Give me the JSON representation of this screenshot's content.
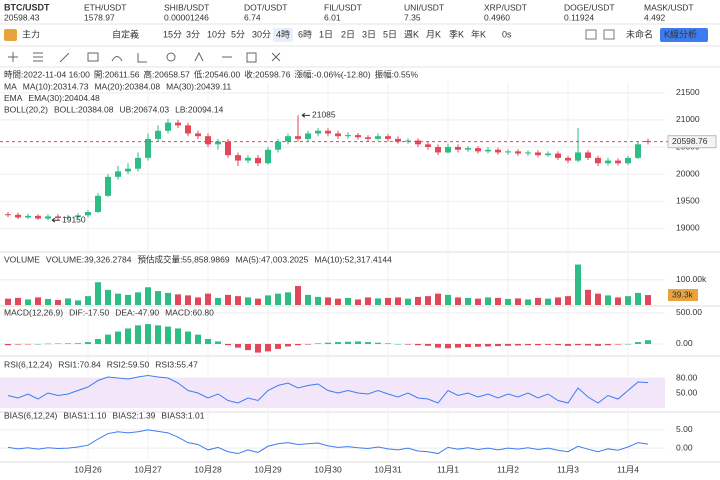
{
  "tickers": [
    {
      "symbol": "BTC/USDT",
      "price": "20598.43",
      "color": "#e2475a"
    },
    {
      "symbol": "ETH/USDT",
      "price": "1578.97",
      "color": "#e2475a"
    },
    {
      "symbol": "SHIB/USDT",
      "price": "0.00001246",
      "color": "#1fae6e"
    },
    {
      "symbol": "DOT/USDT",
      "price": "6.74",
      "color": "#333333"
    },
    {
      "symbol": "FIL/USDT",
      "price": "6.01",
      "color": "#333333"
    },
    {
      "symbol": "UNI/USDT",
      "price": "7.35",
      "color": "#333333"
    },
    {
      "symbol": "XRP/USDT",
      "price": "0.4960",
      "color": "#1fae6e"
    },
    {
      "symbol": "DOGE/USDT",
      "price": "0.11924",
      "color": "#e2475a"
    },
    {
      "symbol": "MASK/USDT",
      "price": "4.492",
      "color": "#e2475a"
    }
  ],
  "toolbar": {
    "mode": "主力",
    "custom": "自定義",
    "intervals": [
      "15分",
      "3分",
      "10分",
      "5分",
      "30分",
      "4時",
      "6時",
      "1日",
      "2日",
      "3日",
      "5日",
      "週K",
      "月K",
      "季K",
      "年K"
    ],
    "timer": "0s",
    "layout_name": "未命名",
    "analysis_button": "K線分析"
  },
  "info": [
    "時間:2022-11-04 16:00",
    "開:20611.56",
    "高:20658.57",
    "低:20546.00",
    "收:20598.76",
    "漲幅:-0.06%(-12.80)",
    "振幅:0.55%"
  ],
  "chart_data": [
    {
      "type": "candlestick",
      "up_color": "#2ebd85",
      "down_color": "#e2475a",
      "legend_rows": [
        [
          {
            "text": "MA",
            "color": "#666666"
          },
          {
            "text": "MA(10):20314.73",
            "color": "#9b8fc4"
          },
          {
            "text": "MA(20):20384.08",
            "color": "#3d7cf0"
          },
          {
            "text": "MA(30):20439.11",
            "color": "#b048c8"
          }
        ],
        [
          {
            "text": "EMA",
            "color": "#666666"
          },
          {
            "text": "EMA(30):20404.48",
            "color": "#e8a33c"
          }
        ],
        [
          {
            "text": "BOLL(20,2)",
            "color": "#666666"
          },
          {
            "text": "BOLL:20384.08",
            "color": "#2ebd85"
          },
          {
            "text": "UB:20674.03",
            "color": "#e8a33c"
          },
          {
            "text": "LB:20094.14",
            "color": "#b048c8"
          }
        ]
      ],
      "ylim": [
        18600,
        21700
      ],
      "yticks": [
        19000,
        19500,
        20000,
        20500,
        21000,
        21500
      ],
      "open": [
        19260,
        19250,
        19200,
        19230,
        19180,
        19220,
        19190,
        19210,
        19240,
        19300,
        19600,
        19950,
        20050,
        20100,
        20300,
        20650,
        20800,
        20950,
        20900,
        20750,
        20700,
        20550,
        20600,
        20350,
        20250,
        20300,
        20200,
        20450,
        20600,
        20700,
        20650,
        20750,
        20800,
        20750,
        20700,
        20720,
        20680,
        20650,
        20700,
        20650,
        20600,
        20620,
        20550,
        20500,
        20400,
        20500,
        20450,
        20480,
        20420,
        20450,
        20400,
        20420,
        20380,
        20400,
        20350,
        20380,
        20300,
        20250,
        20400,
        20300,
        20200,
        20250,
        20200,
        20300,
        20611.56
      ],
      "high": [
        19300,
        19290,
        19270,
        19260,
        19260,
        19260,
        19250,
        19280,
        19340,
        19650,
        20000,
        20150,
        20200,
        20400,
        20750,
        20900,
        21020,
        21000,
        20950,
        20800,
        20750,
        20650,
        20650,
        20400,
        20350,
        20350,
        20500,
        20650,
        20750,
        21085,
        20800,
        20850,
        20850,
        20800,
        20770,
        20760,
        20720,
        20750,
        20740,
        20700,
        20660,
        20660,
        20600,
        20550,
        20560,
        20550,
        20520,
        20520,
        20500,
        20490,
        20460,
        20460,
        20440,
        20440,
        20420,
        20420,
        20340,
        20850,
        20440,
        20340,
        20300,
        20290,
        20340,
        20600,
        20658.57
      ],
      "low": [
        19210,
        19170,
        19170,
        19157,
        19150,
        19160,
        19160,
        19180,
        19200,
        19280,
        19580,
        19900,
        20000,
        20050,
        20250,
        20600,
        20750,
        20850,
        20700,
        20650,
        20500,
        20450,
        20300,
        20150,
        20200,
        20150,
        20180,
        20400,
        20550,
        20600,
        20600,
        20700,
        20700,
        20650,
        20650,
        20640,
        20600,
        20620,
        20600,
        20560,
        20560,
        20500,
        20450,
        20350,
        20380,
        20400,
        20410,
        20380,
        20380,
        20360,
        20360,
        20340,
        20340,
        20310,
        20320,
        20260,
        20200,
        20220,
        20260,
        20150,
        20160,
        20160,
        20170,
        20280,
        20546.0
      ],
      "close": [
        19250,
        19200,
        19230,
        19180,
        19220,
        19190,
        19210,
        19240,
        19300,
        19600,
        19950,
        20050,
        20100,
        20300,
        20650,
        20800,
        20950,
        20900,
        20750,
        20700,
        20550,
        20600,
        20350,
        20250,
        20300,
        20200,
        20450,
        20600,
        20700,
        20650,
        20750,
        20800,
        20750,
        20700,
        20720,
        20680,
        20650,
        20700,
        20650,
        20600,
        20620,
        20550,
        20500,
        20400,
        20500,
        20450,
        20480,
        20420,
        20450,
        20400,
        20420,
        20380,
        20400,
        20350,
        20380,
        20300,
        20250,
        20400,
        20300,
        20200,
        20250,
        20200,
        20300,
        20550,
        20598.76
      ]
    },
    {
      "type": "bar",
      "up_color": "#2ebd85",
      "down_color": "#e2475a",
      "legend_rows": [
        [
          {
            "text": "VOLUME",
            "color": "#666666"
          },
          {
            "text": "VOLUME:39,326.2784",
            "color": "#2ebd85"
          },
          {
            "text": "預估成交量:55,858.9869",
            "color": "#333333"
          },
          {
            "text": "MA(5):47,003.2025",
            "color": "#e8a33c"
          },
          {
            "text": "MA(10):52,317.4144",
            "color": "#b048c8"
          }
        ]
      ],
      "ylim": [
        0,
        170000
      ],
      "yticks": [
        {
          "value": 100000,
          "label": "100.00k"
        }
      ],
      "values": [
        25000,
        28000,
        22000,
        30000,
        24000,
        20000,
        26000,
        18000,
        35000,
        90000,
        60000,
        45000,
        40000,
        50000,
        70000,
        55000,
        48000,
        42000,
        38000,
        30000,
        45000,
        28000,
        40000,
        35000,
        30000,
        25000,
        38000,
        45000,
        50000,
        75000,
        40000,
        32000,
        30000,
        25000,
        28000,
        22000,
        30000,
        26000,
        28000,
        30000,
        25000,
        32000,
        35000,
        45000,
        40000,
        30000,
        28000,
        25000,
        30000,
        28000,
        24000,
        26000,
        22000,
        28000,
        25000,
        30000,
        35000,
        160000,
        60000,
        45000,
        38000,
        30000,
        35000,
        48000,
        39326.2784
      ],
      "value_labels": [
        null,
        null,
        null,
        null,
        null,
        null,
        null,
        null,
        null,
        null,
        null,
        null,
        null,
        null,
        null,
        null,
        null,
        null,
        null,
        null,
        null,
        null,
        null,
        null,
        null,
        null,
        null,
        null,
        null,
        null,
        null,
        null,
        null,
        null,
        null,
        null,
        null,
        null,
        null,
        null,
        null,
        null,
        null,
        null,
        null,
        null,
        null,
        null,
        null,
        null,
        null,
        null,
        null,
        null,
        null,
        null,
        null,
        null,
        null,
        null,
        null,
        null,
        null,
        null,
        "39.3k"
      ]
    },
    {
      "type": "bar",
      "up_color": "#2ebd85",
      "down_color": "#e2475a",
      "legend_rows": [
        [
          {
            "text": "MACD(12,26,9)",
            "color": "#666666"
          },
          {
            "text": "DIF:-17.50",
            "color": "#2ebd85"
          },
          {
            "text": "DEA:-47.90",
            "color": "#e8a33c"
          },
          {
            "text": "MACD:60.80",
            "color": "#2ebd85"
          }
        ]
      ],
      "ylim": [
        -130,
        580
      ],
      "yticks": [
        {
          "value": 500,
          "label": "500.00"
        },
        {
          "value": 0,
          "label": "0.00"
        }
      ],
      "values": [
        -20,
        -10,
        -5,
        0,
        5,
        8,
        10,
        12,
        30,
        80,
        150,
        200,
        250,
        300,
        320,
        300,
        280,
        250,
        200,
        150,
        80,
        40,
        -20,
        -60,
        -100,
        -140,
        -120,
        -80,
        -40,
        -20,
        -10,
        10,
        20,
        30,
        35,
        40,
        30,
        20,
        10,
        0,
        -10,
        -20,
        -30,
        -60,
        -70,
        -60,
        -50,
        -45,
        -40,
        -35,
        -30,
        -25,
        -20,
        -20,
        -15,
        -20,
        -30,
        -20,
        -25,
        -30,
        -20,
        -10,
        0,
        30,
        60.8
      ]
    },
    {
      "type": "line",
      "legend_rows": [
        [
          {
            "text": "RSI(6,12,24)",
            "color": "#666666"
          },
          {
            "text": "RSI1:70.84",
            "color": "#3d7cf0"
          },
          {
            "text": "RSI2:59.50",
            "color": "#e8a33c"
          },
          {
            "text": "RSI3:55.47",
            "color": "#b048c8"
          }
        ]
      ],
      "ylim": [
        20,
        100
      ],
      "yticks": [
        {
          "value": 80,
          "label": "80.00"
        },
        {
          "value": 50,
          "label": "50.00"
        }
      ],
      "series": [
        {
          "name": "RSI1",
          "color": "#3d7cf0",
          "values": [
            45,
            40,
            48,
            38,
            50,
            45,
            48,
            55,
            62,
            75,
            82,
            80,
            78,
            82,
            85,
            82,
            80,
            70,
            55,
            50,
            40,
            48,
            35,
            30,
            40,
            35,
            55,
            65,
            70,
            60,
            65,
            68,
            55,
            50,
            55,
            50,
            48,
            55,
            48,
            42,
            50,
            40,
            38,
            30,
            55,
            45,
            50,
            42,
            48,
            40,
            48,
            42,
            50,
            40,
            48,
            35,
            30,
            60,
            42,
            30,
            45,
            38,
            55,
            72,
            70.84
          ]
        }
      ]
    },
    {
      "type": "line",
      "legend_rows": [
        [
          {
            "text": "BIAS(6,12,24)",
            "color": "#666666"
          },
          {
            "text": "BIAS1:1.10",
            "color": "#3d7cf0"
          },
          {
            "text": "BIAS2:1.39",
            "color": "#e8a33c"
          },
          {
            "text": "BIAS3:1.01",
            "color": "#b048c8"
          }
        ]
      ],
      "ylim": [
        -3,
        8
      ],
      "yticks": [
        {
          "value": 5,
          "label": "5.00"
        },
        {
          "value": 0,
          "label": "0.00"
        }
      ],
      "categories": [
        null,
        null,
        null,
        null,
        null,
        null,
        null,
        null,
        "10月26",
        null,
        null,
        null,
        null,
        null,
        "10月27",
        null,
        null,
        null,
        null,
        null,
        "10月28",
        null,
        null,
        null,
        null,
        null,
        "10月29",
        null,
        null,
        null,
        null,
        null,
        "10月30",
        null,
        null,
        null,
        null,
        null,
        "10月31",
        null,
        null,
        null,
        null,
        null,
        "11月1",
        null,
        null,
        null,
        null,
        null,
        "11月2",
        null,
        null,
        null,
        null,
        null,
        "11月3",
        null,
        null,
        null,
        null,
        null,
        "11月4",
        null,
        null
      ],
      "series": [
        {
          "name": "BIAS1",
          "color": "#3d7cf0",
          "values": [
            0.2,
            -0.2,
            0.1,
            -0.3,
            0.1,
            -0.1,
            0,
            0.3,
            0.8,
            2.5,
            4,
            4.5,
            4.2,
            4.5,
            5,
            4.6,
            4.2,
            3,
            1.5,
            1,
            -0.5,
            0.2,
            -1,
            -1.5,
            -0.5,
            -1.2,
            0.5,
            1.2,
            1.5,
            1,
            1.2,
            1.4,
            0.6,
            0.2,
            0.4,
            0.1,
            -0.1,
            0.3,
            -0.2,
            -0.5,
            0,
            -0.8,
            -1,
            -1.5,
            0.2,
            -0.3,
            0.1,
            -0.4,
            0,
            -0.5,
            0,
            -0.3,
            0.1,
            -0.4,
            0,
            -0.6,
            -1,
            0.5,
            -0.3,
            -1,
            -0.2,
            -0.6,
            0.3,
            1.5,
            1.1
          ]
        }
      ]
    }
  ]
}
